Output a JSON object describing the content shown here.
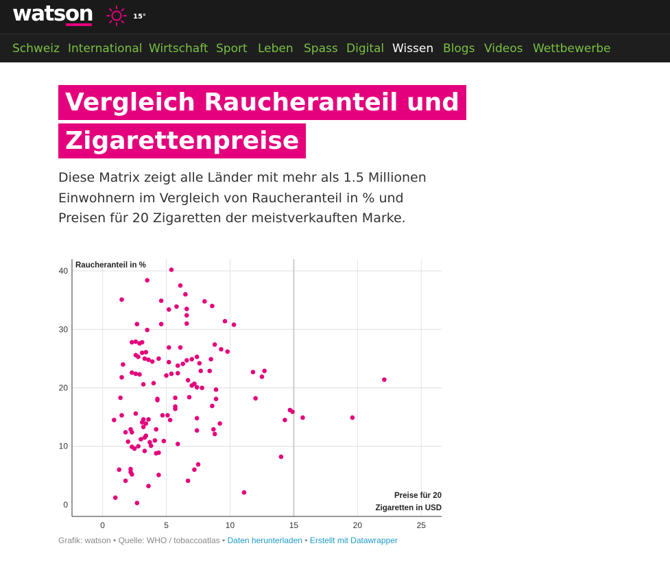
{
  "header": {
    "logo": "watson",
    "weather_icon": "sun-icon",
    "temperature": "15°"
  },
  "nav": {
    "items": [
      "Schweiz",
      "International",
      "Wirtschaft",
      "Sport",
      "Leben",
      "Spass",
      "Digital",
      "Wissen",
      "Blogs",
      "Videos",
      "Wettbewerbe"
    ],
    "active": "Wissen"
  },
  "article": {
    "title_line1": "Vergleich Raucheranteil und",
    "title_line2": "Zigarettenpreise",
    "subtitle": "Diese Matrix zeigt alle Länder mit mehr als 1.5 Millionen Ein­wohnern im Vergleich von Raucheranteil in % und Preisen für 20 Zigaretten der meistverkauften Marke."
  },
  "colors": {
    "accent": "#e4007c",
    "nav_text": "#7ac143",
    "nav_active": "#ffffff",
    "topbar_bg": "#1a1a1a",
    "link": "#1d9bc9"
  },
  "chart_data": {
    "type": "scatter",
    "ylabel": "Raucheranteil in %",
    "xlabel_line1": "Preise für 20",
    "xlabel_line2": "Zigaretten in USD",
    "xlim": [
      -2.4,
      26.6
    ],
    "ylim": [
      -2,
      42
    ],
    "x_ticks": [
      0,
      5,
      10,
      15,
      20,
      25
    ],
    "y_ticks": [
      0,
      10,
      20,
      30,
      40
    ],
    "grid": true,
    "points": [
      [
        5.4,
        40.2
      ],
      [
        6.1,
        37.5
      ],
      [
        3.5,
        38.4
      ],
      [
        1.5,
        35.1
      ],
      [
        6.5,
        36.0
      ],
      [
        4.6,
        34.9
      ],
      [
        8.0,
        34.8
      ],
      [
        5.2,
        33.4
      ],
      [
        5.8,
        33.9
      ],
      [
        6.6,
        33.5
      ],
      [
        8.6,
        34.0
      ],
      [
        6.6,
        32.4
      ],
      [
        9.6,
        31.4
      ],
      [
        10.3,
        30.8
      ],
      [
        2.7,
        30.9
      ],
      [
        4.6,
        30.9
      ],
      [
        6.6,
        31.0
      ],
      [
        3.5,
        29.9
      ],
      [
        2.3,
        27.8
      ],
      [
        2.6,
        27.9
      ],
      [
        2.9,
        27.6
      ],
      [
        3.1,
        27.8
      ],
      [
        5.2,
        26.9
      ],
      [
        6.1,
        26.9
      ],
      [
        8.8,
        27.4
      ],
      [
        9.3,
        26.6
      ],
      [
        9.8,
        26.2
      ],
      [
        3.1,
        26.0
      ],
      [
        3.4,
        26.1
      ],
      [
        2.6,
        25.6
      ],
      [
        2.8,
        25.3
      ],
      [
        3.3,
        25.0
      ],
      [
        3.6,
        24.8
      ],
      [
        3.9,
        24.5
      ],
      [
        4.4,
        25.0
      ],
      [
        5.2,
        24.4
      ],
      [
        5.9,
        23.8
      ],
      [
        6.3,
        24.1
      ],
      [
        6.6,
        24.7
      ],
      [
        7.0,
        24.9
      ],
      [
        7.4,
        25.3
      ],
      [
        7.6,
        24.2
      ],
      [
        8.5,
        24.9
      ],
      [
        1.6,
        24.0
      ],
      [
        2.3,
        22.6
      ],
      [
        2.6,
        22.4
      ],
      [
        2.9,
        22.3
      ],
      [
        5.0,
        22.1
      ],
      [
        5.4,
        22.4
      ],
      [
        5.9,
        22.5
      ],
      [
        7.7,
        22.9
      ],
      [
        8.4,
        22.9
      ],
      [
        11.8,
        22.7
      ],
      [
        12.5,
        21.9
      ],
      [
        12.7,
        22.9
      ],
      [
        22.1,
        21.4
      ],
      [
        1.5,
        21.8
      ],
      [
        3.2,
        20.6
      ],
      [
        4.0,
        20.8
      ],
      [
        6.7,
        21.3
      ],
      [
        7.0,
        20.4
      ],
      [
        7.2,
        20.7
      ],
      [
        7.4,
        20.1
      ],
      [
        7.8,
        20.0
      ],
      [
        8.9,
        19.7
      ],
      [
        5.7,
        18.3
      ],
      [
        6.8,
        18.4
      ],
      [
        4.3,
        17.9
      ],
      [
        4.3,
        18.1
      ],
      [
        8.9,
        18.1
      ],
      [
        12.0,
        18.2
      ],
      [
        1.4,
        18.3
      ],
      [
        5.7,
        16.8
      ],
      [
        5.7,
        16.4
      ],
      [
        8.6,
        16.9
      ],
      [
        14.7,
        16.2
      ],
      [
        14.9,
        15.9
      ],
      [
        2.6,
        15.6
      ],
      [
        4.7,
        15.3
      ],
      [
        5.1,
        15.3
      ],
      [
        1.5,
        15.3
      ],
      [
        3.2,
        14.6
      ],
      [
        3.6,
        14.6
      ],
      [
        5.3,
        14.5
      ],
      [
        7.4,
        14.8
      ],
      [
        15.7,
        14.9
      ],
      [
        19.6,
        14.9
      ],
      [
        0.9,
        14.5
      ],
      [
        14.3,
        14.5
      ],
      [
        3.1,
        14.1
      ],
      [
        3.4,
        13.9
      ],
      [
        9.2,
        13.9
      ],
      [
        3.2,
        13.3
      ],
      [
        2.2,
        12.9
      ],
      [
        4.2,
        12.9
      ],
      [
        7.4,
        12.7
      ],
      [
        8.7,
        12.9
      ],
      [
        1.8,
        12.4
      ],
      [
        2.3,
        12.4
      ],
      [
        8.8,
        12.1
      ],
      [
        3.4,
        11.8
      ],
      [
        3.3,
        11.5
      ],
      [
        3.0,
        11.2
      ],
      [
        4.1,
        11.0
      ],
      [
        4.8,
        10.9
      ],
      [
        2.0,
        10.8
      ],
      [
        3.7,
        10.7
      ],
      [
        5.9,
        10.4
      ],
      [
        3.8,
        10.1
      ],
      [
        2.8,
        10.0
      ],
      [
        2.3,
        9.9
      ],
      [
        2.5,
        9.6
      ],
      [
        3.3,
        9.2
      ],
      [
        4.2,
        8.8
      ],
      [
        4.4,
        8.9
      ],
      [
        14.0,
        8.2
      ],
      [
        7.5,
        6.9
      ],
      [
        7.2,
        6.0
      ],
      [
        1.3,
        6.0
      ],
      [
        2.2,
        6.1
      ],
      [
        2.2,
        5.6
      ],
      [
        2.3,
        5.2
      ],
      [
        4.4,
        5.1
      ],
      [
        1.8,
        4.1
      ],
      [
        6.7,
        4.1
      ],
      [
        3.6,
        3.2
      ],
      [
        11.1,
        2.1
      ],
      [
        1.0,
        1.2
      ],
      [
        2.7,
        0.3
      ]
    ]
  },
  "footer": {
    "source": "Grafik: watson • Quelle: WHO / tobaccoatlas •",
    "download_link": "Daten herunterladen",
    "separator": "•",
    "datawrapper_link": "Erstellt mit Datawrapper"
  }
}
